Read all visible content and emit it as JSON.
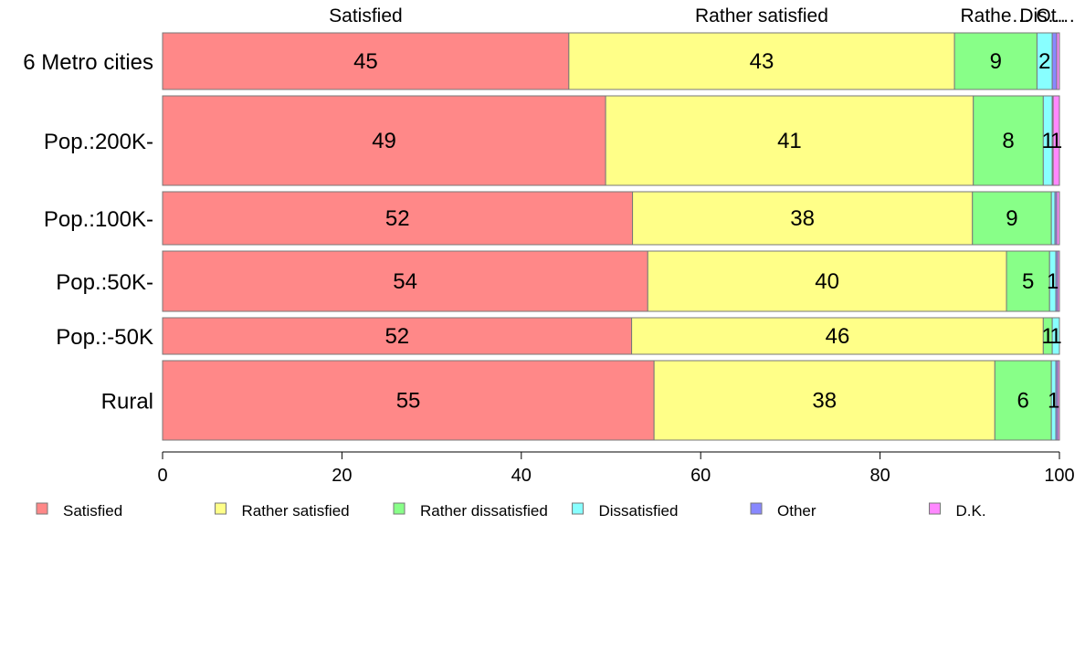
{
  "chart_data": {
    "type": "bar",
    "orientation": "horizontal",
    "stacked": true,
    "categories": [
      "6 Metro cities",
      "Pop.:200K-",
      "Pop.:100K-",
      "Pop.:50K-",
      "Pop.:-50K",
      "Rural"
    ],
    "series": [
      {
        "name": "Satisfied",
        "color": "#ff8888",
        "values": [
          45.3,
          49.4,
          52.4,
          54.1,
          52.3,
          54.8
        ]
      },
      {
        "name": "Rather satisfied",
        "color": "#ffff88",
        "values": [
          43.0,
          41.0,
          37.9,
          40.0,
          45.9,
          38.0
        ]
      },
      {
        "name": "Rather dissatisfied",
        "color": "#88ff88",
        "values": [
          9.2,
          7.8,
          8.8,
          4.8,
          1.0,
          6.3
        ]
      },
      {
        "name": "Dissatisfied",
        "color": "#88ffff",
        "values": [
          1.7,
          1.0,
          0.4,
          0.7,
          0.8,
          0.5
        ]
      },
      {
        "name": "Other",
        "color": "#8888ff",
        "values": [
          0.5,
          0.1,
          0.2,
          0.2,
          0.0,
          0.2
        ]
      },
      {
        "name": "D.K.",
        "color": "#ff88ff",
        "values": [
          0.3,
          0.7,
          0.3,
          0.2,
          0.0,
          0.2
        ]
      }
    ],
    "data_labels": [
      [
        "45",
        "43",
        "9",
        "2",
        "",
        ""
      ],
      [
        "49",
        "41",
        "8",
        "1",
        "",
        "1"
      ],
      [
        "52",
        "38",
        "9",
        "",
        "",
        ""
      ],
      [
        "54",
        "40",
        "5",
        "1",
        "",
        ""
      ],
      [
        "52",
        "46",
        "1",
        "1",
        "",
        ""
      ],
      [
        "55",
        "38",
        "6",
        "1",
        "",
        ""
      ]
    ],
    "column_headers": [
      "Satisfied",
      "Rather satisfied",
      "Rathe…",
      "Dis…",
      "Ot…"
    ],
    "xlim": [
      0,
      100
    ],
    "xticks": [
      0,
      20,
      40,
      60,
      80,
      100
    ],
    "grid": false,
    "legend_position": "bottom"
  }
}
